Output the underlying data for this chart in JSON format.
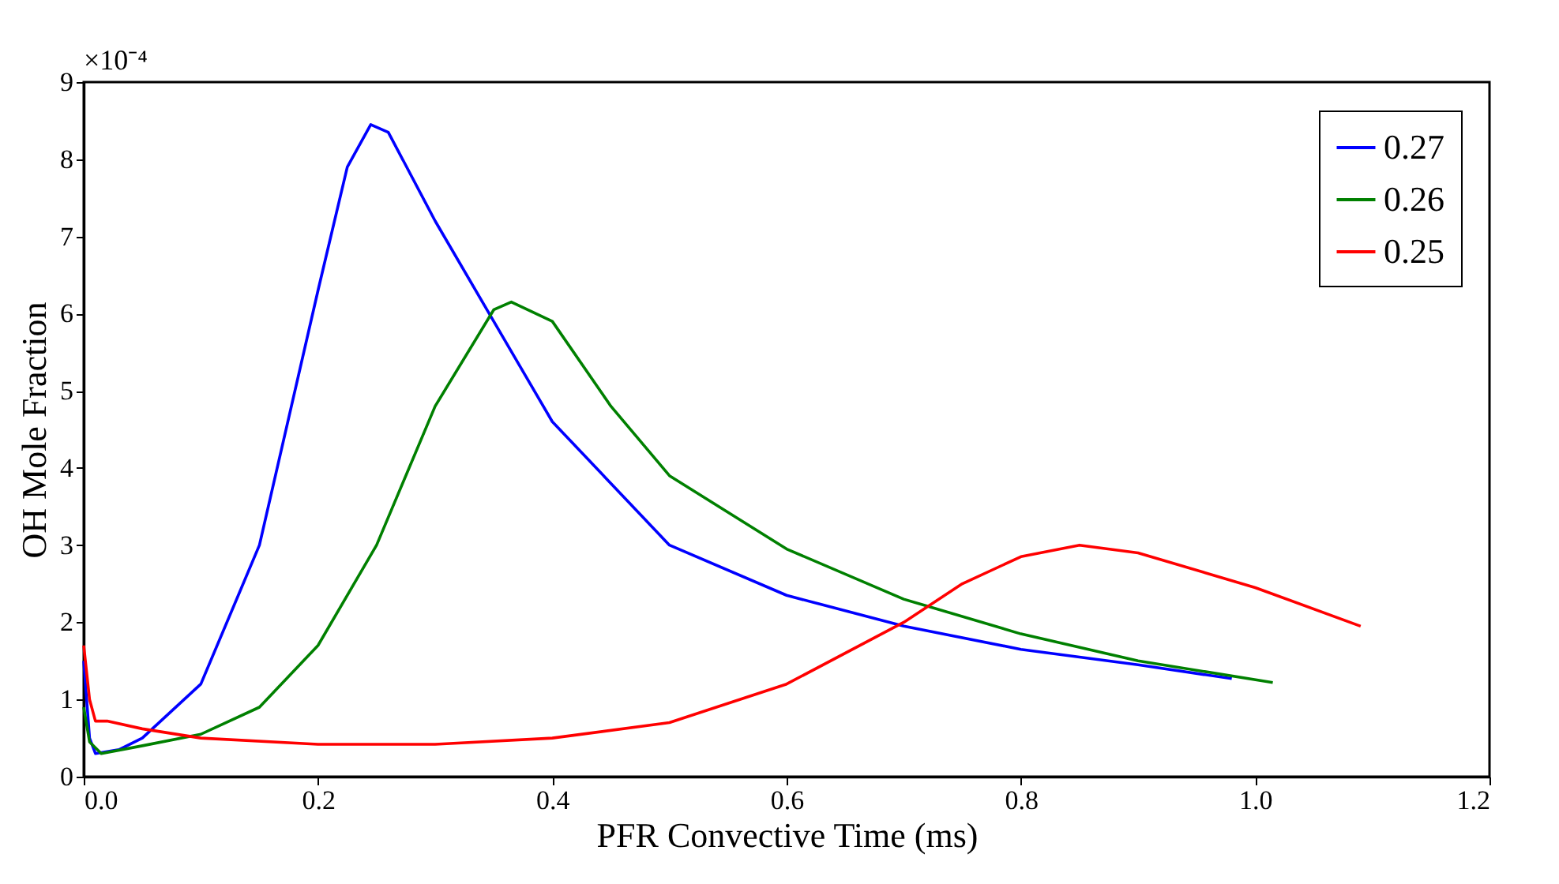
{
  "chart_data": {
    "type": "line",
    "xlabel": "PFR Convective Time (ms)",
    "ylabel": "OH Mole Fraction",
    "annotations": [
      "×10⁻⁴"
    ],
    "xlim": [
      0,
      1.2
    ],
    "ylim": [
      0,
      9
    ],
    "xticks": [
      {
        "value": 0,
        "label": "0.0"
      },
      0.2,
      0.4,
      0.6,
      0.8,
      {
        "value": 1,
        "label": "1.0"
      },
      {
        "value": 1.2,
        "label": "1.2"
      }
    ],
    "yticks": [
      0,
      1,
      2,
      3,
      4,
      5,
      6,
      7,
      8,
      9
    ],
    "grid": false,
    "legend": "top right",
    "line_style": "solid",
    "marker": "none",
    "series": [
      {
        "name": "0.27",
        "color": "#0000ff",
        "x": [
          0,
          0.005,
          0.01,
          0.03,
          0.05,
          0.1,
          0.15,
          0.2,
          0.225,
          0.245,
          0.26,
          0.3,
          0.35,
          0.4,
          0.5,
          0.6,
          0.7,
          0.8,
          0.9,
          0.98
        ],
        "values": [
          1.5,
          0.5,
          0.3,
          0.35,
          0.5,
          1.2,
          3.0,
          6.3,
          7.9,
          8.45,
          8.35,
          7.2,
          5.9,
          4.6,
          3.0,
          2.35,
          1.95,
          1.65,
          1.45,
          1.27
        ]
      },
      {
        "name": "0.26",
        "color": "#008000",
        "x": [
          0,
          0.005,
          0.015,
          0.05,
          0.1,
          0.15,
          0.2,
          0.25,
          0.3,
          0.35,
          0.365,
          0.4,
          0.45,
          0.5,
          0.6,
          0.7,
          0.8,
          0.9,
          1.015
        ],
        "values": [
          0.9,
          0.45,
          0.3,
          0.4,
          0.55,
          0.9,
          1.7,
          3.0,
          4.8,
          6.05,
          6.15,
          5.9,
          4.8,
          3.9,
          2.95,
          2.3,
          1.85,
          1.5,
          1.22
        ]
      },
      {
        "name": "0.25",
        "color": "#ff0000",
        "x": [
          0,
          0.005,
          0.01,
          0.02,
          0.05,
          0.1,
          0.2,
          0.3,
          0.4,
          0.5,
          0.6,
          0.7,
          0.75,
          0.8,
          0.85,
          0.9,
          1.0,
          1.09
        ],
        "values": [
          1.7,
          1.0,
          0.72,
          0.72,
          0.62,
          0.5,
          0.42,
          0.42,
          0.5,
          0.7,
          1.2,
          2.0,
          2.5,
          2.85,
          3.0,
          2.9,
          2.45,
          1.95
        ]
      }
    ]
  }
}
